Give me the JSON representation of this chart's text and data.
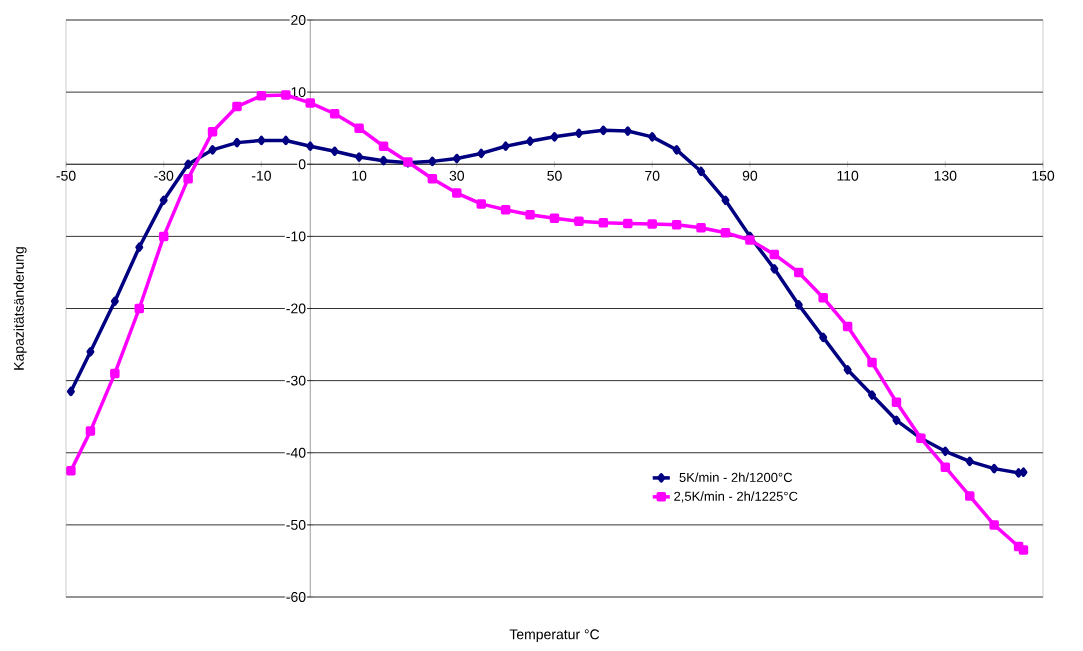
{
  "chart_data": {
    "type": "line",
    "xlabel": "Temperatur °C",
    "ylabel": "Kapazitätsänderung",
    "xlim": [
      -50,
      150
    ],
    "xticks": [
      -50,
      -30,
      -10,
      10,
      30,
      50,
      70,
      90,
      110,
      130,
      150
    ],
    "ylim": [
      -60,
      20
    ],
    "yticks": [
      -60,
      -50,
      -40,
      -30,
      -20,
      -10,
      0,
      10,
      20
    ],
    "grid": "y",
    "legend": "bottom",
    "line_style": "solid",
    "series": [
      {
        "name": "5K/min - 2h/1200°C",
        "color": "#000080",
        "marker": "diamond",
        "x": [
          -49,
          -45,
          -40,
          -35,
          -30,
          -25,
          -20,
          -15,
          -10,
          -5,
          0,
          5,
          10,
          15,
          20,
          25,
          30,
          35,
          40,
          45,
          50,
          55,
          60,
          65,
          70,
          75,
          80,
          85,
          90,
          95,
          100,
          105,
          110,
          115,
          120,
          125,
          130,
          135,
          140,
          145,
          146
        ],
        "values": [
          -31.5,
          -26,
          -19,
          -11.5,
          -5,
          0,
          2,
          3,
          3.3,
          3.3,
          2.5,
          1.8,
          1,
          0.5,
          0.2,
          0.4,
          0.8,
          1.5,
          2.5,
          3.2,
          3.8,
          4.3,
          4.7,
          4.6,
          3.8,
          2,
          -1,
          -5,
          -10,
          -14.5,
          -19.5,
          -24,
          -28.5,
          -32,
          -35.5,
          -38,
          -39.8,
          -41.2,
          -42.2,
          -42.8,
          -42.7
        ]
      },
      {
        "name": "2,5K/min - 2h/1225°C",
        "color": "#ff00ff",
        "marker": "square",
        "x": [
          -49,
          -45,
          -40,
          -35,
          -30,
          -25,
          -20,
          -15,
          -10,
          -5,
          0,
          5,
          10,
          15,
          20,
          25,
          30,
          35,
          40,
          45,
          50,
          55,
          60,
          65,
          70,
          75,
          80,
          85,
          90,
          95,
          100,
          105,
          110,
          115,
          120,
          125,
          130,
          135,
          140,
          145,
          146
        ],
        "values": [
          -42.5,
          -37,
          -29,
          -20,
          -10,
          -2,
          4.5,
          8,
          9.5,
          9.6,
          8.5,
          7,
          5,
          2.5,
          0.3,
          -2,
          -4,
          -5.5,
          -6.3,
          -7,
          -7.5,
          -7.9,
          -8.1,
          -8.2,
          -8.3,
          -8.4,
          -8.8,
          -9.5,
          -10.5,
          -12.5,
          -15,
          -18.5,
          -22.5,
          -27.5,
          -33,
          -38,
          -42,
          -46,
          -50,
          -53,
          -53.5
        ]
      }
    ]
  }
}
